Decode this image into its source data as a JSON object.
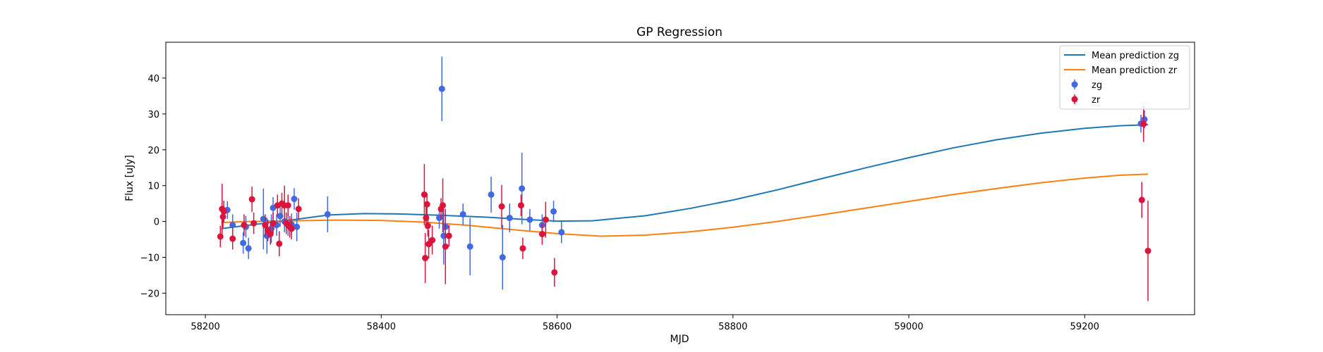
{
  "chart_data": {
    "type": "scatter",
    "title": "GP Regression",
    "xlabel": "MJD",
    "ylabel": "Flux [uJy]",
    "xlim": [
      58155,
      59325
    ],
    "ylim": [
      -26,
      50
    ],
    "x_ticks": [
      58200,
      58400,
      58600,
      58800,
      59000,
      59200
    ],
    "y_ticks": [
      -20,
      -10,
      0,
      10,
      20,
      30,
      40
    ],
    "grid": false,
    "legend_position": "top-right",
    "colors": {
      "mean_zg": "#1f77b4",
      "mean_zr": "#ff7f0e",
      "zg": "#4169e1",
      "zr": "#dc143c"
    },
    "series": [
      {
        "name": "Mean prediction zg",
        "kind": "line",
        "color": "#1f77b4",
        "points": [
          [
            58218,
            -2.0
          ],
          [
            58250,
            -1.0
          ],
          [
            58300,
            0.5
          ],
          [
            58340,
            1.8
          ],
          [
            58380,
            2.2
          ],
          [
            58420,
            2.1
          ],
          [
            58470,
            1.7
          ],
          [
            58520,
            1.2
          ],
          [
            58560,
            0.6
          ],
          [
            58600,
            0.1
          ],
          [
            58640,
            0.2
          ],
          [
            58700,
            1.6
          ],
          [
            58750,
            3.6
          ],
          [
            58800,
            6.0
          ],
          [
            58850,
            8.8
          ],
          [
            58900,
            11.9
          ],
          [
            58950,
            14.9
          ],
          [
            59000,
            17.8
          ],
          [
            59050,
            20.5
          ],
          [
            59100,
            22.8
          ],
          [
            59150,
            24.6
          ],
          [
            59200,
            26.0
          ],
          [
            59240,
            26.7
          ],
          [
            59272,
            27.0
          ]
        ]
      },
      {
        "name": "Mean prediction zr",
        "kind": "line",
        "color": "#ff7f0e",
        "points": [
          [
            58218,
            -0.3
          ],
          [
            58250,
            0.0
          ],
          [
            58300,
            0.2
          ],
          [
            58350,
            0.4
          ],
          [
            58400,
            0.3
          ],
          [
            58450,
            -0.2
          ],
          [
            58500,
            -1.1
          ],
          [
            58550,
            -2.3
          ],
          [
            58600,
            -3.4
          ],
          [
            58650,
            -4.1
          ],
          [
            58700,
            -3.8
          ],
          [
            58750,
            -2.9
          ],
          [
            58800,
            -1.6
          ],
          [
            58850,
            0.0
          ],
          [
            58900,
            1.8
          ],
          [
            58950,
            3.7
          ],
          [
            59000,
            5.6
          ],
          [
            59050,
            7.5
          ],
          [
            59100,
            9.2
          ],
          [
            59150,
            10.8
          ],
          [
            59200,
            12.1
          ],
          [
            59240,
            12.9
          ],
          [
            59272,
            13.2
          ]
        ]
      },
      {
        "name": "zg",
        "kind": "errorbar",
        "color": "#4169e1",
        "points": [
          {
            "x": 58221,
            "y": 3,
            "err": 2.5
          },
          {
            "x": 58225,
            "y": 3.2,
            "err": 2.5
          },
          {
            "x": 58231,
            "y": -1,
            "err": 3
          },
          {
            "x": 58243,
            "y": -6,
            "err": 3
          },
          {
            "x": 58246,
            "y": -1.5,
            "err": 3
          },
          {
            "x": 58249,
            "y": -7.5,
            "err": 3
          },
          {
            "x": 58266,
            "y": 0.7,
            "err": 8.5
          },
          {
            "x": 58270,
            "y": -4,
            "err": 5
          },
          {
            "x": 58275,
            "y": -2,
            "err": 4
          },
          {
            "x": 58277,
            "y": 3.8,
            "err": 3
          },
          {
            "x": 58281,
            "y": -1,
            "err": 3
          },
          {
            "x": 58285,
            "y": 1.5,
            "err": 3
          },
          {
            "x": 58290,
            "y": 0,
            "err": 3
          },
          {
            "x": 58294,
            "y": -1,
            "err": 3
          },
          {
            "x": 58298,
            "y": -0.8,
            "err": 3
          },
          {
            "x": 58301,
            "y": 6.3,
            "err": 3
          },
          {
            "x": 58304,
            "y": -1.5,
            "err": 4
          },
          {
            "x": 58339,
            "y": 2,
            "err": 5
          },
          {
            "x": 58466,
            "y": 1,
            "err": 3
          },
          {
            "x": 58469,
            "y": 37,
            "err": 9
          },
          {
            "x": 58471,
            "y": -4,
            "err": 8
          },
          {
            "x": 58473,
            "y": -1.5,
            "err": 4
          },
          {
            "x": 58493,
            "y": 2,
            "err": 3
          },
          {
            "x": 58501,
            "y": -7,
            "err": 8
          },
          {
            "x": 58525,
            "y": 7.5,
            "err": 5
          },
          {
            "x": 58538,
            "y": -10,
            "err": 9
          },
          {
            "x": 58546,
            "y": 1,
            "err": 4
          },
          {
            "x": 58560,
            "y": 9.2,
            "err": 10
          },
          {
            "x": 58569,
            "y": 0.5,
            "err": 3
          },
          {
            "x": 58583,
            "y": -1,
            "err": 3
          },
          {
            "x": 58596,
            "y": 2.8,
            "err": 3
          },
          {
            "x": 58605,
            "y": -3,
            "err": 3
          },
          {
            "x": 59264,
            "y": 27.3,
            "err": 2.5
          },
          {
            "x": 59268,
            "y": 28.5,
            "err": 2.5
          }
        ]
      },
      {
        "name": "zr",
        "kind": "errorbar",
        "color": "#dc143c",
        "points": [
          {
            "x": 58217,
            "y": -4.2,
            "err": 3
          },
          {
            "x": 58219,
            "y": 3.5,
            "err": 7
          },
          {
            "x": 58220,
            "y": 1.3,
            "err": 3
          },
          {
            "x": 58221,
            "y": 2.8,
            "err": 3
          },
          {
            "x": 58231,
            "y": -4.8,
            "err": 3
          },
          {
            "x": 58244,
            "y": -1,
            "err": 3
          },
          {
            "x": 58253,
            "y": 6.2,
            "err": 3.5
          },
          {
            "x": 58255,
            "y": -0.5,
            "err": 3
          },
          {
            "x": 58268,
            "y": -1,
            "err": 3
          },
          {
            "x": 58271,
            "y": -2.5,
            "err": 3
          },
          {
            "x": 58274,
            "y": -3.5,
            "err": 3
          },
          {
            "x": 58277,
            "y": -0.5,
            "err": 3
          },
          {
            "x": 58282,
            "y": 4.5,
            "err": 3
          },
          {
            "x": 58284,
            "y": -6.2,
            "err": 3.5
          },
          {
            "x": 58287,
            "y": 5,
            "err": 3
          },
          {
            "x": 58290,
            "y": 4.5,
            "err": 5.5
          },
          {
            "x": 58292,
            "y": -0.5,
            "err": 3
          },
          {
            "x": 58294,
            "y": 4.5,
            "err": 3
          },
          {
            "x": 58296,
            "y": -1.5,
            "err": 3
          },
          {
            "x": 58298,
            "y": -2,
            "err": 3
          },
          {
            "x": 58306,
            "y": 3.5,
            "err": 3
          },
          {
            "x": 58449,
            "y": 7.5,
            "err": 8.5
          },
          {
            "x": 58450,
            "y": -10.2,
            "err": 7
          },
          {
            "x": 58451,
            "y": 1,
            "err": 3
          },
          {
            "x": 58452,
            "y": 4.8,
            "err": 3
          },
          {
            "x": 58453,
            "y": -1.2,
            "err": 3
          },
          {
            "x": 58454,
            "y": -6.3,
            "err": 4
          },
          {
            "x": 58458,
            "y": -5.2,
            "err": 4
          },
          {
            "x": 58468,
            "y": 3.5,
            "err": 3
          },
          {
            "x": 58470,
            "y": 4.5,
            "err": 7.5
          },
          {
            "x": 58473,
            "y": -7,
            "err": 10.5
          },
          {
            "x": 58477,
            "y": -4,
            "err": 3
          },
          {
            "x": 58537,
            "y": 4.2,
            "err": 6
          },
          {
            "x": 58559,
            "y": 4.5,
            "err": 3
          },
          {
            "x": 58561,
            "y": -7.5,
            "err": 3
          },
          {
            "x": 58583,
            "y": -3.5,
            "err": 3
          },
          {
            "x": 58587,
            "y": 0.5,
            "err": 5
          },
          {
            "x": 58597,
            "y": -14.2,
            "err": 4
          },
          {
            "x": 59265,
            "y": 6,
            "err": 5
          },
          {
            "x": 59267,
            "y": 27.2,
            "err": 5
          },
          {
            "x": 59272,
            "y": -8.2,
            "err": 14
          }
        ]
      }
    ]
  }
}
